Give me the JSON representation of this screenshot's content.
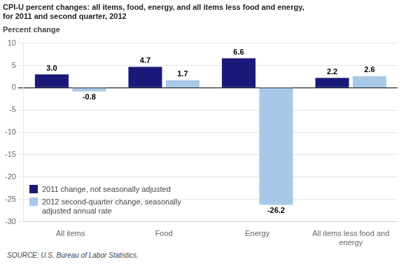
{
  "chart_data": {
    "type": "bar",
    "title": "CPI-U percent changes: all items, food, energy, and all items less food and energy,\nfor 2011 and second quarter, 2012",
    "ylabel": "Percent change",
    "source": "SOURCE: U.S. Bureau of Labor Statistics.",
    "categories": [
      "All items",
      "Food",
      "Energy",
      "All items less food and\nenergy"
    ],
    "series": [
      {
        "name": "2011 change, not seasonally adjusted",
        "color": "#1a1a7a",
        "values": [
          3.0,
          4.7,
          6.6,
          2.2
        ],
        "value_labels": [
          "3.0",
          "4.7",
          "6.6",
          "2.2"
        ]
      },
      {
        "name": "2012 second-quarter change, seasonally\nadjusted annual rate",
        "color": "#a8c8e8",
        "values": [
          -0.8,
          1.7,
          -26.2,
          2.6
        ],
        "value_labels": [
          "-0.8",
          "1.7",
          "-26.2",
          "2.6"
        ]
      }
    ],
    "ylim": [
      -30,
      10
    ],
    "yticks": [
      -30,
      -25,
      -20,
      -15,
      -10,
      -5,
      0,
      5,
      10
    ],
    "grid": true,
    "legend": "lower left",
    "data_labels": true
  }
}
